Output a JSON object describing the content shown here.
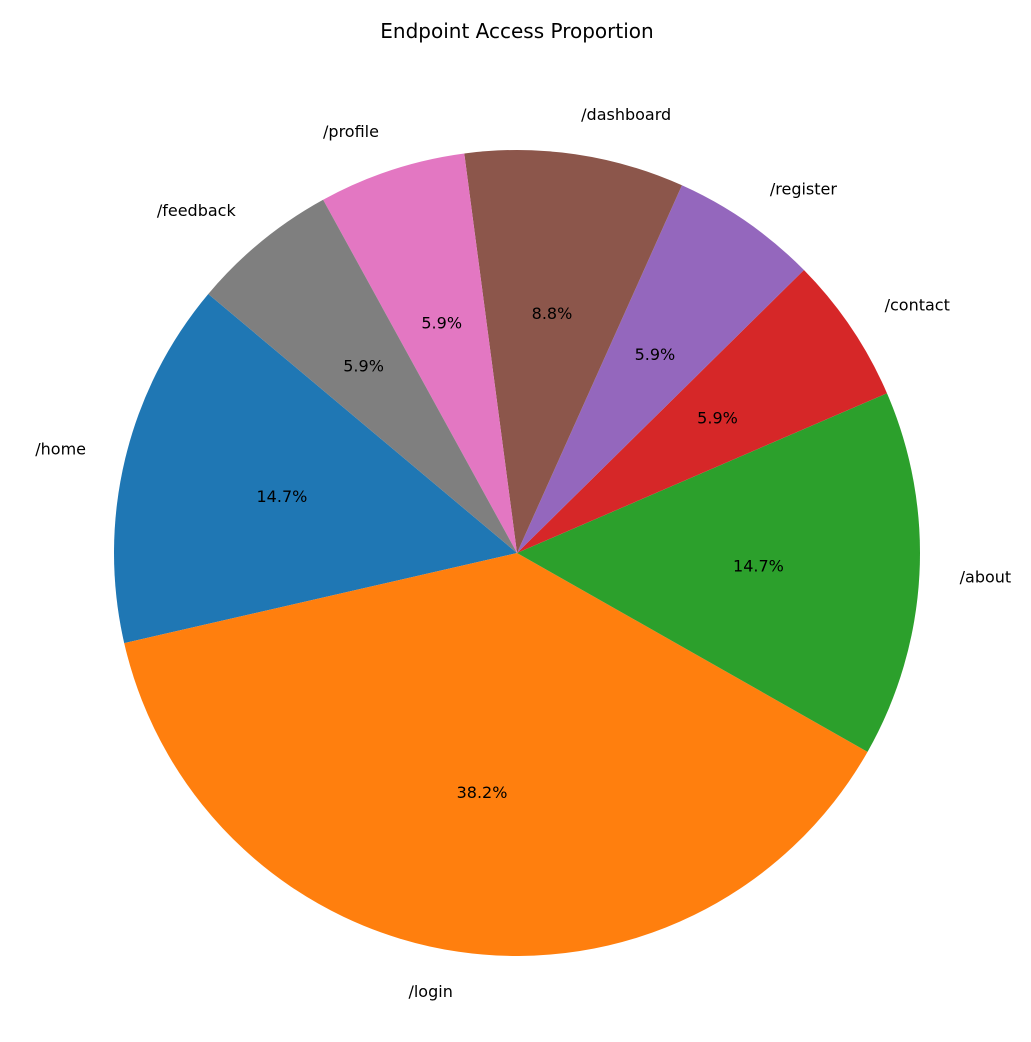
{
  "chart_data": {
    "type": "pie",
    "title": "Endpoint Access Proportion",
    "start_angle_deg": 140,
    "direction": "counterclockwise",
    "slices": [
      {
        "label": "/home",
        "value": 14.7,
        "pct_label": "14.7%",
        "color": "#1f77b4"
      },
      {
        "label": "/login",
        "value": 38.2,
        "pct_label": "38.2%",
        "color": "#ff7f0e"
      },
      {
        "label": "/about",
        "value": 14.7,
        "pct_label": "14.7%",
        "color": "#2ca02c"
      },
      {
        "label": "/contact",
        "value": 5.9,
        "pct_label": "5.9%",
        "color": "#d62728"
      },
      {
        "label": "/register",
        "value": 5.9,
        "pct_label": "5.9%",
        "color": "#9467bd"
      },
      {
        "label": "/dashboard",
        "value": 8.8,
        "pct_label": "8.8%",
        "color": "#8c564b"
      },
      {
        "label": "/profile",
        "value": 5.9,
        "pct_label": "5.9%",
        "color": "#e377c2"
      },
      {
        "label": "/feedback",
        "value": 5.9,
        "pct_label": "5.9%",
        "color": "#7f7f7f"
      }
    ]
  }
}
